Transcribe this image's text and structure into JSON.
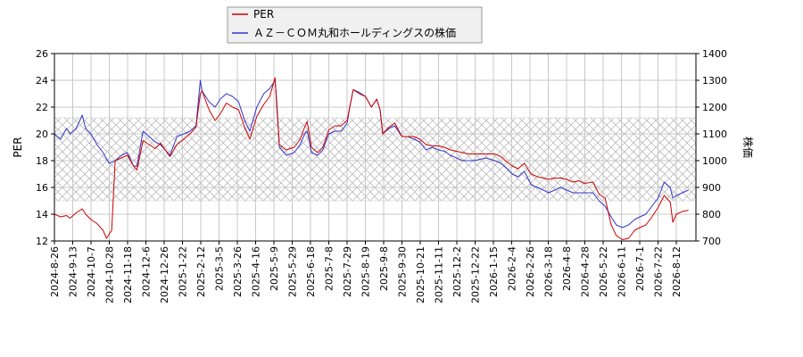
{
  "chart_data": {
    "type": "line",
    "legend": {
      "placement": "top-center",
      "entries": [
        {
          "label": "PER",
          "color": "#cc0000"
        },
        {
          "label": "ＡＺ－ＣＯＭ丸和ホールディングスの株価",
          "color": "#3333cc"
        }
      ]
    },
    "left_axis": {
      "label": "PER",
      "ylim": [
        12,
        26
      ],
      "ticks": [
        12,
        14,
        16,
        18,
        20,
        22,
        24,
        26
      ]
    },
    "right_axis": {
      "label": "株価",
      "ylim": [
        700,
        1400
      ],
      "ticks": [
        700,
        800,
        900,
        1000,
        1100,
        1200,
        1300,
        1400
      ]
    },
    "grid": true,
    "x_ticks": [
      "2024-8-26",
      "2024-9-13",
      "2024-10-7",
      "2024-10-28",
      "2024-11-18",
      "2024-12-6",
      "2024-12-26",
      "2025-1-22",
      "2025-2-12",
      "2025-3-5",
      "2025-3-26",
      "2025-4-16",
      "2025-5-9",
      "2025-5-29",
      "2025-6-18",
      "2025-7-8",
      "2025-7-29",
      "2025-8-19",
      "2025-9-8",
      "2025-9-30",
      "2025-10-21",
      "2025-11-11",
      "2025-12-2",
      "2025-12-22",
      "2026-1-15",
      "2026-2-4",
      "2026-2-26",
      "2026-3-18",
      "2026-4-8",
      "2026-4-28",
      "2026-5-22",
      "2026-6-11",
      "2026-7-1",
      "2026-7-22",
      "2026-8-12"
    ],
    "series": [
      {
        "name": "PER",
        "axis": "left",
        "color": "#cc0000",
        "points": [
          [
            "2024-8-26",
            14.0
          ],
          [
            "2024-9-2",
            13.8
          ],
          [
            "2024-9-9",
            13.9
          ],
          [
            "2024-9-13",
            13.7
          ],
          [
            "2024-9-20",
            14.1
          ],
          [
            "2024-9-27",
            14.4
          ],
          [
            "2024-10-1",
            14.0
          ],
          [
            "2024-10-7",
            13.6
          ],
          [
            "2024-10-14",
            13.3
          ],
          [
            "2024-10-21",
            12.8
          ],
          [
            "2024-10-25",
            12.2
          ],
          [
            "2024-10-28",
            12.5
          ],
          [
            "2024-10-31",
            12.8
          ],
          [
            "2024-11-4",
            18.0
          ],
          [
            "2024-11-11",
            18.2
          ],
          [
            "2024-11-18",
            18.4
          ],
          [
            "2024-11-25",
            17.6
          ],
          [
            "2024-11-29",
            17.3
          ],
          [
            "2024-12-6",
            19.5
          ],
          [
            "2024-12-13",
            19.2
          ],
          [
            "2024-12-20",
            18.9
          ],
          [
            "2024-12-26",
            19.3
          ],
          [
            "2025-1-6",
            18.3
          ],
          [
            "2025-1-14",
            19.2
          ],
          [
            "2025-1-22",
            19.6
          ],
          [
            "2025-1-29",
            20.0
          ],
          [
            "2025-2-5",
            20.5
          ],
          [
            "2025-2-10",
            23.0
          ],
          [
            "2025-2-12",
            23.2
          ],
          [
            "2025-2-20",
            21.8
          ],
          [
            "2025-2-27",
            21.0
          ],
          [
            "2025-3-5",
            21.5
          ],
          [
            "2025-3-12",
            22.3
          ],
          [
            "2025-3-19",
            22.0
          ],
          [
            "2025-3-26",
            21.8
          ],
          [
            "2025-4-2",
            20.5
          ],
          [
            "2025-4-8",
            19.6
          ],
          [
            "2025-4-16",
            21.3
          ],
          [
            "2025-4-24",
            22.2
          ],
          [
            "2025-5-1",
            22.8
          ],
          [
            "2025-5-7",
            24.2
          ],
          [
            "2025-5-9",
            22.0
          ],
          [
            "2025-5-12",
            19.2
          ],
          [
            "2025-5-20",
            18.8
          ],
          [
            "2025-5-29",
            19.0
          ],
          [
            "2025-6-5",
            19.6
          ],
          [
            "2025-6-10",
            20.5
          ],
          [
            "2025-6-13",
            20.9
          ],
          [
            "2025-6-18",
            19.0
          ],
          [
            "2025-6-25",
            18.6
          ],
          [
            "2025-7-1",
            19.0
          ],
          [
            "2025-7-8",
            20.3
          ],
          [
            "2025-7-15",
            20.6
          ],
          [
            "2025-7-22",
            20.6
          ],
          [
            "2025-7-29",
            21.0
          ],
          [
            "2025-8-1",
            22.0
          ],
          [
            "2025-8-5",
            23.3
          ],
          [
            "2025-8-12",
            23.0
          ],
          [
            "2025-8-19",
            22.8
          ],
          [
            "2025-8-26",
            22.0
          ],
          [
            "2025-9-1",
            22.6
          ],
          [
            "2025-9-5",
            21.8
          ],
          [
            "2025-9-8",
            20.0
          ],
          [
            "2025-9-15",
            20.5
          ],
          [
            "2025-9-22",
            20.8
          ],
          [
            "2025-9-30",
            19.8
          ],
          [
            "2025-10-7",
            19.8
          ],
          [
            "2025-10-14",
            19.8
          ],
          [
            "2025-10-21",
            19.6
          ],
          [
            "2025-10-28",
            19.2
          ],
          [
            "2025-11-4",
            19.1
          ],
          [
            "2025-11-11",
            19.1
          ],
          [
            "2025-11-18",
            19.0
          ],
          [
            "2025-11-25",
            18.8
          ],
          [
            "2025-12-2",
            18.7
          ],
          [
            "2025-12-9",
            18.6
          ],
          [
            "2025-12-16",
            18.5
          ],
          [
            "2025-12-22",
            18.5
          ],
          [
            "2026-1-5",
            18.5
          ],
          [
            "2026-1-15",
            18.5
          ],
          [
            "2026-1-22",
            18.3
          ],
          [
            "2026-1-29",
            17.9
          ],
          [
            "2026-2-4",
            17.6
          ],
          [
            "2026-2-11",
            17.4
          ],
          [
            "2026-2-18",
            17.8
          ],
          [
            "2026-2-26",
            17.0
          ],
          [
            "2026-3-5",
            16.8
          ],
          [
            "2026-3-12",
            16.7
          ],
          [
            "2026-3-18",
            16.6
          ],
          [
            "2026-3-25",
            16.7
          ],
          [
            "2026-4-1",
            16.7
          ],
          [
            "2026-4-8",
            16.6
          ],
          [
            "2026-4-15",
            16.4
          ],
          [
            "2026-4-22",
            16.5
          ],
          [
            "2026-4-28",
            16.3
          ],
          [
            "2026-5-8",
            16.4
          ],
          [
            "2026-5-15",
            15.5
          ],
          [
            "2026-5-22",
            15.2
          ],
          [
            "2026-5-29",
            13.2
          ],
          [
            "2026-6-4",
            12.4
          ],
          [
            "2026-6-11",
            12.1
          ],
          [
            "2026-6-18",
            12.2
          ],
          [
            "2026-6-25",
            12.8
          ],
          [
            "2026-7-1",
            13.0
          ],
          [
            "2026-7-8",
            13.2
          ],
          [
            "2026-7-15",
            13.8
          ],
          [
            "2026-7-22",
            14.5
          ],
          [
            "2026-7-29",
            15.4
          ],
          [
            "2026-8-5",
            14.9
          ],
          [
            "2026-8-8",
            13.4
          ],
          [
            "2026-8-12",
            14.0
          ],
          [
            "2026-8-19",
            14.2
          ],
          [
            "2026-8-26",
            14.3
          ]
        ]
      },
      {
        "name": "ＡＺ－ＣＯＭ丸和ホールディングスの株価",
        "axis": "right",
        "color": "#3333cc",
        "points": [
          [
            "2024-8-26",
            1100
          ],
          [
            "2024-9-2",
            1080
          ],
          [
            "2024-9-9",
            1120
          ],
          [
            "2024-9-13",
            1100
          ],
          [
            "2024-9-20",
            1120
          ],
          [
            "2024-9-27",
            1170
          ],
          [
            "2024-10-1",
            1120
          ],
          [
            "2024-10-7",
            1100
          ],
          [
            "2024-10-14",
            1060
          ],
          [
            "2024-10-21",
            1030
          ],
          [
            "2024-10-28",
            990
          ],
          [
            "2024-11-4",
            1000
          ],
          [
            "2024-11-11",
            1020
          ],
          [
            "2024-11-18",
            1030
          ],
          [
            "2024-11-25",
            980
          ],
          [
            "2024-11-29",
            980
          ],
          [
            "2024-12-6",
            1110
          ],
          [
            "2024-12-13",
            1090
          ],
          [
            "2024-12-20",
            1070
          ],
          [
            "2024-12-26",
            1060
          ],
          [
            "2025-1-6",
            1020
          ],
          [
            "2025-1-14",
            1090
          ],
          [
            "2025-1-22",
            1100
          ],
          [
            "2025-1-29",
            1110
          ],
          [
            "2025-2-5",
            1130
          ],
          [
            "2025-2-10",
            1300
          ],
          [
            "2025-2-12",
            1260
          ],
          [
            "2025-2-20",
            1220
          ],
          [
            "2025-2-27",
            1200
          ],
          [
            "2025-3-5",
            1230
          ],
          [
            "2025-3-12",
            1250
          ],
          [
            "2025-3-19",
            1240
          ],
          [
            "2025-3-26",
            1220
          ],
          [
            "2025-4-2",
            1150
          ],
          [
            "2025-4-8",
            1110
          ],
          [
            "2025-4-16",
            1200
          ],
          [
            "2025-4-24",
            1250
          ],
          [
            "2025-5-1",
            1270
          ],
          [
            "2025-5-7",
            1300
          ],
          [
            "2025-5-9",
            1220
          ],
          [
            "2025-5-12",
            1050
          ],
          [
            "2025-5-20",
            1020
          ],
          [
            "2025-5-29",
            1030
          ],
          [
            "2025-6-5",
            1060
          ],
          [
            "2025-6-10",
            1100
          ],
          [
            "2025-6-13",
            1110
          ],
          [
            "2025-6-18",
            1030
          ],
          [
            "2025-6-25",
            1020
          ],
          [
            "2025-7-1",
            1040
          ],
          [
            "2025-7-8",
            1100
          ],
          [
            "2025-7-15",
            1110
          ],
          [
            "2025-7-22",
            1110
          ],
          [
            "2025-7-29",
            1140
          ],
          [
            "2025-8-1",
            1200
          ],
          [
            "2025-8-5",
            1265
          ],
          [
            "2025-8-12",
            1255
          ],
          [
            "2025-8-19",
            1240
          ],
          [
            "2025-8-26",
            1200
          ],
          [
            "2025-9-1",
            1230
          ],
          [
            "2025-9-5",
            1190
          ],
          [
            "2025-9-8",
            1100
          ],
          [
            "2025-9-15",
            1120
          ],
          [
            "2025-9-22",
            1130
          ],
          [
            "2025-9-30",
            1090
          ],
          [
            "2025-10-7",
            1090
          ],
          [
            "2025-10-14",
            1080
          ],
          [
            "2025-10-21",
            1070
          ],
          [
            "2025-10-28",
            1040
          ],
          [
            "2025-11-4",
            1050
          ],
          [
            "2025-11-11",
            1040
          ],
          [
            "2025-11-18",
            1035
          ],
          [
            "2025-11-25",
            1020
          ],
          [
            "2025-12-2",
            1010
          ],
          [
            "2025-12-9",
            1000
          ],
          [
            "2025-12-16",
            1000
          ],
          [
            "2025-12-22",
            1000
          ],
          [
            "2026-1-5",
            1010
          ],
          [
            "2026-1-15",
            1000
          ],
          [
            "2026-1-22",
            990
          ],
          [
            "2026-1-29",
            970
          ],
          [
            "2026-2-4",
            950
          ],
          [
            "2026-2-11",
            940
          ],
          [
            "2026-2-18",
            960
          ],
          [
            "2026-2-26",
            910
          ],
          [
            "2026-3-5",
            900
          ],
          [
            "2026-3-12",
            890
          ],
          [
            "2026-3-18",
            880
          ],
          [
            "2026-3-25",
            890
          ],
          [
            "2026-4-1",
            900
          ],
          [
            "2026-4-8",
            890
          ],
          [
            "2026-4-15",
            880
          ],
          [
            "2026-4-22",
            880
          ],
          [
            "2026-4-28",
            880
          ],
          [
            "2026-5-8",
            880
          ],
          [
            "2026-5-15",
            850
          ],
          [
            "2026-5-22",
            830
          ],
          [
            "2026-5-29",
            790
          ],
          [
            "2026-6-4",
            760
          ],
          [
            "2026-6-11",
            750
          ],
          [
            "2026-6-18",
            760
          ],
          [
            "2026-6-25",
            780
          ],
          [
            "2026-7-1",
            790
          ],
          [
            "2026-7-8",
            800
          ],
          [
            "2026-7-15",
            830
          ],
          [
            "2026-7-22",
            860
          ],
          [
            "2026-7-29",
            920
          ],
          [
            "2026-8-5",
            900
          ],
          [
            "2026-8-8",
            860
          ],
          [
            "2026-8-12",
            870
          ],
          [
            "2026-8-19",
            880
          ],
          [
            "2026-8-26",
            890
          ]
        ]
      }
    ]
  }
}
